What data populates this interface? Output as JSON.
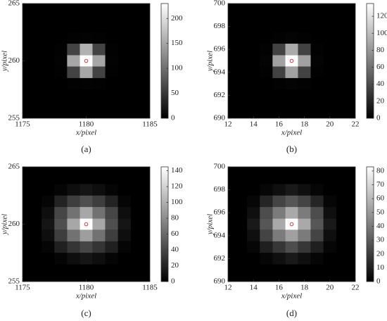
{
  "chart_data": [
    {
      "type": "heatmap",
      "caption": "(a)",
      "x_label": "x/pixel",
      "y_label": "y/pixel",
      "colormap": "gray",
      "x": [
        1178,
        1179,
        1180,
        1181,
        1182
      ],
      "y": [
        262,
        261,
        260,
        259,
        258
      ],
      "values": [
        [
          0,
          2,
          3,
          2,
          0
        ],
        [
          2,
          60,
          160,
          60,
          2
        ],
        [
          3,
          150,
          230,
          150,
          3
        ],
        [
          2,
          60,
          150,
          60,
          2
        ],
        [
          0,
          2,
          3,
          2,
          0
        ]
      ],
      "xlim": [
        1175,
        1185
      ],
      "ylim": [
        255,
        265
      ],
      "xticks": [
        1175,
        1180,
        1185
      ],
      "yticks": [
        255,
        260,
        265
      ],
      "clim": [
        0,
        230
      ],
      "cticks": [
        0,
        50,
        100,
        150,
        200
      ],
      "marker": {
        "x": 1180,
        "y": 260,
        "color": "#e8202a"
      }
    },
    {
      "type": "heatmap",
      "caption": "(b)",
      "x_label": "x/pixel",
      "y_label": "y/pixel",
      "colormap": "gray",
      "x": [
        15,
        16,
        17,
        18,
        19
      ],
      "y": [
        697,
        696,
        695,
        694,
        693
      ],
      "values": [
        [
          0,
          1,
          2,
          1,
          0
        ],
        [
          1,
          35,
          90,
          35,
          1
        ],
        [
          2,
          85,
          135,
          85,
          2
        ],
        [
          1,
          35,
          85,
          35,
          1
        ],
        [
          0,
          1,
          2,
          1,
          0
        ]
      ],
      "xlim": [
        12,
        22
      ],
      "ylim": [
        690,
        700
      ],
      "xticks": [
        12,
        14,
        16,
        18,
        20,
        22
      ],
      "yticks": [
        690,
        692,
        694,
        696,
        698,
        700
      ],
      "clim": [
        0,
        135
      ],
      "cticks": [
        0,
        20,
        40,
        60,
        80,
        100,
        120
      ],
      "marker": {
        "x": 17,
        "y": 695,
        "color": "#e8202a"
      }
    },
    {
      "type": "heatmap",
      "caption": "(c)",
      "x_label": "x/pixel",
      "y_label": "y/pixel",
      "colormap": "gray",
      "x": [
        1177,
        1178,
        1179,
        1180,
        1181,
        1182,
        1183
      ],
      "y": [
        263,
        262,
        261,
        260,
        259,
        258,
        257
      ],
      "values": [
        [
          0,
          3,
          8,
          12,
          8,
          3,
          0
        ],
        [
          3,
          20,
          35,
          45,
          35,
          20,
          3
        ],
        [
          8,
          40,
          65,
          95,
          65,
          40,
          8
        ],
        [
          12,
          45,
          95,
          145,
          95,
          45,
          12
        ],
        [
          8,
          35,
          65,
          90,
          65,
          35,
          8
        ],
        [
          3,
          18,
          30,
          40,
          30,
          18,
          3
        ],
        [
          0,
          3,
          8,
          12,
          8,
          3,
          0
        ]
      ],
      "xlim": [
        1175,
        1185
      ],
      "ylim": [
        255,
        265
      ],
      "xticks": [
        1175,
        1180,
        1185
      ],
      "yticks": [
        255,
        260,
        265
      ],
      "clim": [
        0,
        145
      ],
      "cticks": [
        0,
        20,
        40,
        60,
        80,
        100,
        120,
        140
      ],
      "marker": {
        "x": 1180,
        "y": 260,
        "color": "#e8202a"
      }
    },
    {
      "type": "heatmap",
      "caption": "(d)",
      "x_label": "x/pixel",
      "y_label": "y/pixel",
      "colormap": "gray",
      "x": [
        14,
        15,
        16,
        17,
        18,
        19,
        20
      ],
      "y": [
        698,
        697,
        696,
        695,
        694,
        693,
        692
      ],
      "values": [
        [
          0,
          2,
          5,
          8,
          5,
          2,
          0
        ],
        [
          2,
          12,
          22,
          28,
          22,
          12,
          2
        ],
        [
          5,
          25,
          40,
          55,
          40,
          25,
          5
        ],
        [
          8,
          28,
          55,
          83,
          55,
          28,
          8
        ],
        [
          5,
          22,
          40,
          52,
          40,
          22,
          5
        ],
        [
          2,
          10,
          18,
          25,
          18,
          10,
          2
        ],
        [
          0,
          2,
          5,
          8,
          5,
          2,
          0
        ]
      ],
      "xlim": [
        12,
        22
      ],
      "ylim": [
        690,
        700
      ],
      "xticks": [
        12,
        14,
        16,
        18,
        20,
        22
      ],
      "yticks": [
        690,
        692,
        694,
        696,
        698,
        700
      ],
      "clim": [
        0,
        83
      ],
      "cticks": [
        0,
        10,
        20,
        30,
        40,
        50,
        60,
        70,
        80
      ],
      "marker": {
        "x": 17,
        "y": 695,
        "color": "#e8202a"
      }
    }
  ]
}
